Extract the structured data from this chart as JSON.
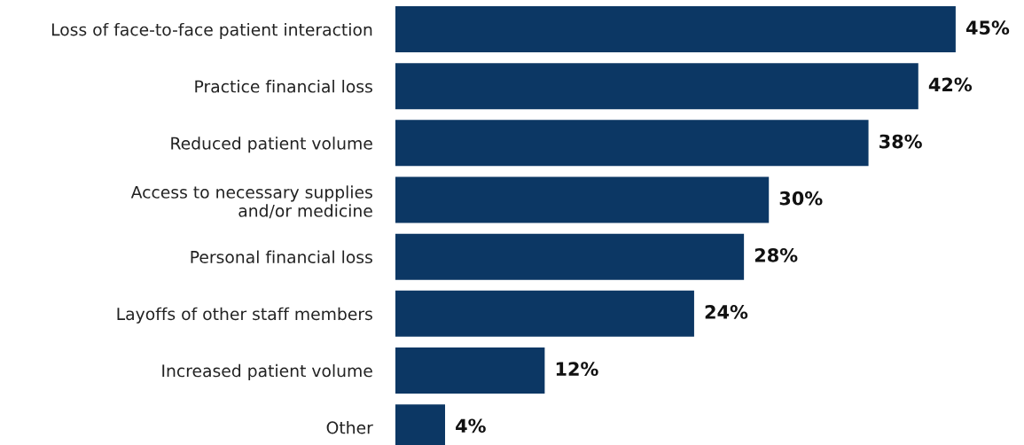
{
  "chart_data": {
    "type": "bar",
    "orientation": "horizontal",
    "categories": [
      "Loss of face-to-face patient interaction",
      "Practice financial loss",
      "Reduced patient volume",
      "Access to necessary supplies\nand/or medicine",
      "Personal financial loss",
      "Layoffs of other staff members",
      "Increased patient volume",
      "Other"
    ],
    "values": [
      45,
      42,
      38,
      30,
      28,
      24,
      12,
      4
    ],
    "value_labels": [
      "45%",
      "42%",
      "38%",
      "30%",
      "28%",
      "24%",
      "12%",
      "4%"
    ],
    "color": "#0c3764"
  }
}
